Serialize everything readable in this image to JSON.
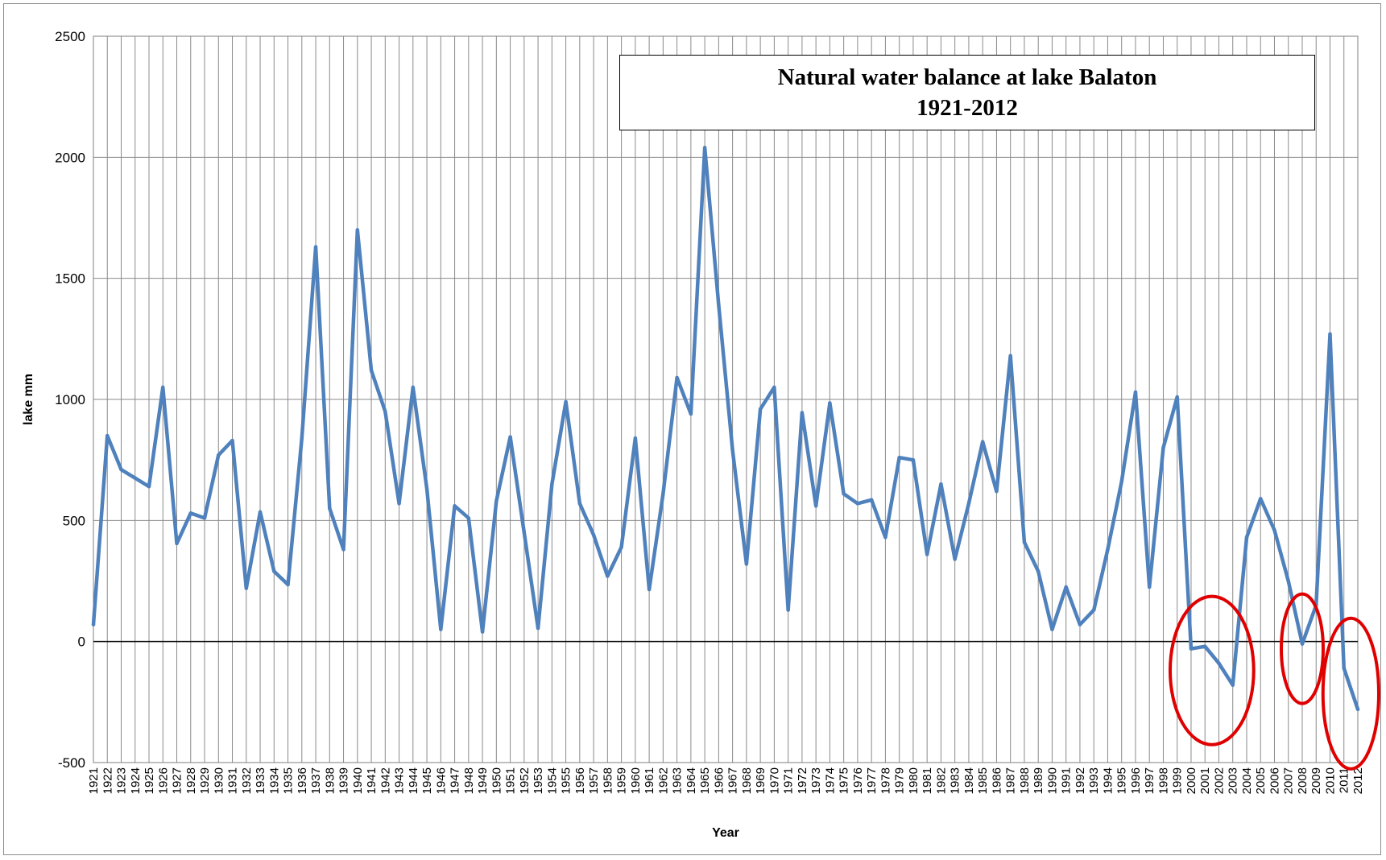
{
  "chart_data": {
    "type": "line",
    "title": "Natural water balance at lake Balaton",
    "subtitle": "1921-2012",
    "xlabel": "Year",
    "ylabel": "lake mm",
    "ylim": [
      -500,
      2500
    ],
    "yticks": [
      -500,
      0,
      500,
      1000,
      1500,
      2000,
      2500
    ],
    "grid": true,
    "legend": "none",
    "series_color": "#4f81bd",
    "highlight_color": "#e00000",
    "highlighted_years": [
      [
        2000,
        2003
      ],
      [
        2008,
        2008
      ],
      [
        2011,
        2012
      ]
    ],
    "x": [
      1921,
      1922,
      1923,
      1924,
      1925,
      1926,
      1927,
      1928,
      1929,
      1930,
      1931,
      1932,
      1933,
      1934,
      1935,
      1936,
      1937,
      1938,
      1939,
      1940,
      1941,
      1942,
      1943,
      1944,
      1945,
      1946,
      1947,
      1948,
      1949,
      1950,
      1951,
      1952,
      1953,
      1954,
      1955,
      1956,
      1957,
      1958,
      1959,
      1960,
      1961,
      1962,
      1963,
      1964,
      1965,
      1966,
      1967,
      1968,
      1969,
      1970,
      1971,
      1972,
      1973,
      1974,
      1975,
      1976,
      1977,
      1978,
      1979,
      1980,
      1981,
      1982,
      1983,
      1984,
      1985,
      1986,
      1987,
      1988,
      1989,
      1990,
      1991,
      1992,
      1993,
      1994,
      1995,
      1996,
      1997,
      1998,
      1999,
      2000,
      2001,
      2002,
      2003,
      2004,
      2005,
      2006,
      2007,
      2008,
      2009,
      2010,
      2011,
      2012
    ],
    "series": [
      {
        "values": [
          70,
          850,
          710,
          675,
          640,
          1050,
          405,
          530,
          510,
          770,
          830,
          220,
          535,
          290,
          235,
          840,
          1630,
          550,
          380,
          1700,
          1120,
          950,
          570,
          1050,
          630,
          50,
          560,
          510,
          40,
          580,
          845,
          450,
          55,
          650,
          990,
          570,
          440,
          270,
          390,
          840,
          215,
          610,
          1090,
          940,
          2040,
          1390,
          790,
          320,
          960,
          1050,
          130,
          945,
          560,
          985,
          610,
          570,
          585,
          430,
          760,
          750,
          360,
          650,
          340,
          570,
          825,
          620,
          1180,
          410,
          290,
          50,
          225,
          70,
          130,
          380,
          660,
          1030,
          225,
          800,
          1010,
          -30,
          -20,
          -90,
          -180,
          430,
          590,
          460,
          250,
          -10,
          150,
          1270,
          -110,
          -280
        ]
      }
    ]
  }
}
